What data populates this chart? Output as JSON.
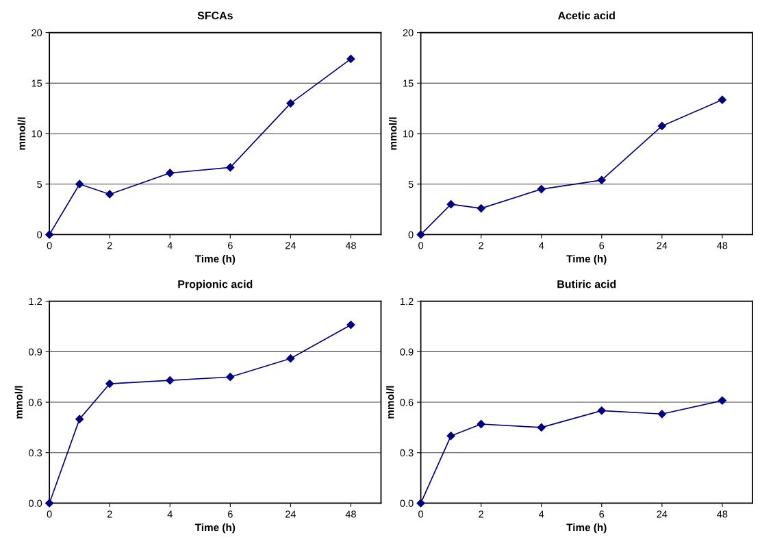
{
  "chart_data": [
    {
      "type": "line",
      "title": "SFCAs",
      "xlabel": "Time (h)",
      "ylabel": "mmol/l",
      "categories": [
        "0",
        null,
        "2",
        null,
        "4",
        null,
        "6",
        null,
        "24",
        null,
        "48"
      ],
      "ylim": [
        0,
        20
      ],
      "yticks": [
        0,
        5,
        10,
        15,
        20
      ],
      "grid": "y",
      "marker": "diamond",
      "line_style": "solid",
      "series": [
        {
          "color": "#000080",
          "values": [
            0,
            5.0,
            4.0,
            null,
            6.1,
            null,
            6.65,
            null,
            13.0,
            null,
            17.4
          ]
        }
      ]
    },
    {
      "type": "line",
      "title": "Acetic acid",
      "xlabel": "Time (h)",
      "ylabel": "mmol/l",
      "categories": [
        "0",
        null,
        "2",
        null,
        "4",
        null,
        "6",
        null,
        "24",
        null,
        "48"
      ],
      "ylim": [
        0,
        20
      ],
      "yticks": [
        0,
        5,
        10,
        15,
        20
      ],
      "grid": "y",
      "marker": "diamond",
      "line_style": "solid",
      "series": [
        {
          "color": "#000080",
          "values": [
            0,
            3.0,
            2.6,
            null,
            4.5,
            null,
            5.4,
            null,
            10.75,
            null,
            13.35
          ]
        }
      ]
    },
    {
      "type": "line",
      "title": "Propionic acid",
      "xlabel": "Time (h)",
      "ylabel": "mmol/l",
      "categories": [
        "0",
        null,
        "2",
        null,
        "4",
        null,
        "6",
        null,
        "24",
        null,
        "48"
      ],
      "ylim": [
        0,
        1.2
      ],
      "yticks": [
        {
          "value": 0,
          "label": "0.0"
        },
        0.3,
        0.6,
        0.9,
        1.2
      ],
      "grid": "y",
      "marker": "diamond",
      "line_style": "solid",
      "series": [
        {
          "color": "#000080",
          "values": [
            0,
            0.5,
            0.71,
            null,
            0.73,
            null,
            0.75,
            null,
            0.86,
            null,
            1.06
          ]
        }
      ]
    },
    {
      "type": "line",
      "title": "Butiric acid",
      "xlabel": "Time (h)",
      "ylabel": "mmol/l",
      "categories": [
        "0",
        null,
        "2",
        null,
        "4",
        null,
        "6",
        null,
        "24",
        null,
        "48"
      ],
      "ylim": [
        0,
        1.2
      ],
      "yticks": [
        {
          "value": 0,
          "label": "0.0"
        },
        0.3,
        0.6,
        0.9,
        1.2
      ],
      "grid": "y",
      "marker": "diamond",
      "line_style": "solid",
      "series": [
        {
          "color": "#000080",
          "values": [
            0,
            0.4,
            0.47,
            null,
            0.45,
            null,
            0.55,
            null,
            0.53,
            null,
            0.61
          ]
        }
      ]
    }
  ]
}
